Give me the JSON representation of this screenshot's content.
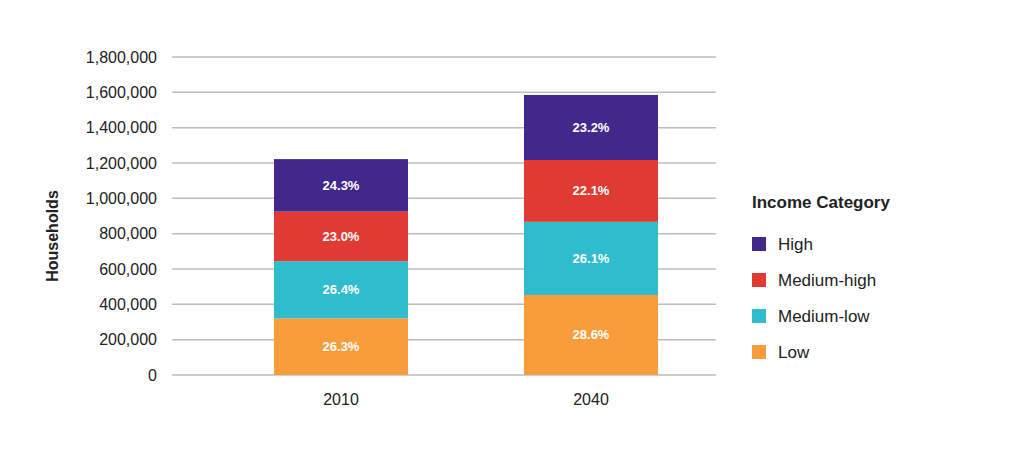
{
  "chart_data": {
    "type": "bar",
    "stacked": true,
    "y_label": "Households",
    "legend_title": "Income Category",
    "legend": "right",
    "grid": true,
    "categories": [
      "2010",
      "2040"
    ],
    "series": [
      {
        "name": "Low",
        "color": "#f99c3b",
        "values": [
          321000,
          453000
        ],
        "share_labels": [
          "26.3%",
          "28.6%"
        ]
      },
      {
        "name": "Medium-low",
        "color": "#2fbccc",
        "values": [
          323000,
          414000
        ],
        "share_labels": [
          "26.4%",
          "26.1%"
        ]
      },
      {
        "name": "Medium-high",
        "color": "#e03a32",
        "values": [
          281000,
          350000
        ],
        "share_labels": [
          "23.0%",
          "22.1%"
        ]
      },
      {
        "name": "High",
        "color": "#42288a",
        "values": [
          297000,
          368000
        ],
        "share_labels": [
          "24.3%",
          "23.2%"
        ]
      }
    ],
    "ylim": [
      0,
      1800000
    ],
    "yticks": [
      0,
      {
        "value": 200000,
        "label": "200,000"
      },
      {
        "value": 400000,
        "label": "400,000"
      },
      {
        "value": 600000,
        "label": "600,000"
      },
      {
        "value": 800000,
        "label": "800,000"
      },
      {
        "value": 1000000,
        "label": "1,000,000"
      },
      {
        "value": 1200000,
        "label": "1,200,000"
      },
      {
        "value": 1400000,
        "label": "1,400,000"
      },
      {
        "value": 1600000,
        "label": "1,600,000"
      },
      {
        "value": 1800000,
        "label": "1,800,000"
      }
    ]
  }
}
